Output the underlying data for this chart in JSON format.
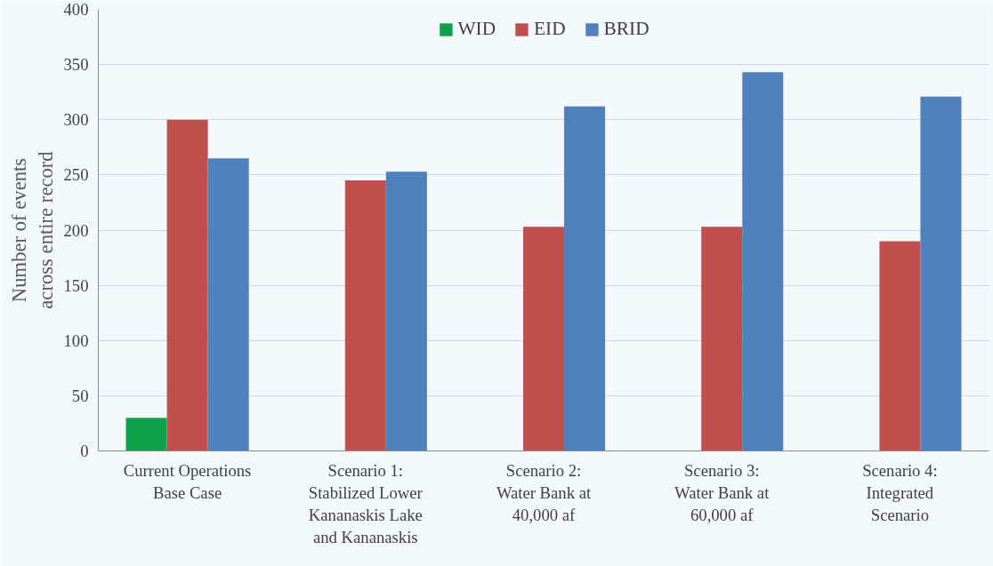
{
  "chart_data": {
    "type": "bar",
    "ylabel": "Number of events\nacross entire record",
    "categories": [
      "Current Operations\nBase Case",
      "Scenario 1:\nStabilized Lower\nKananaskis Lake\nand Kananaskis",
      "Scenario 2:\nWater Bank at\n40,000 af",
      "Scenario 3:\nWater Bank at\n60,000 af",
      "Scenario 4:\nIntegrated\nScenario"
    ],
    "series": [
      {
        "name": "WID",
        "color": "#0ea04a",
        "values": [
          30,
          0,
          0,
          0,
          0
        ]
      },
      {
        "name": "EID",
        "color": "#c0504d",
        "values": [
          300,
          245,
          203,
          203,
          190
        ]
      },
      {
        "name": "BRID",
        "color": "#4f81bd",
        "values": [
          265,
          253,
          312,
          343,
          321
        ]
      }
    ],
    "ylim": [
      0,
      400
    ],
    "yticks": [
      0,
      50,
      100,
      150,
      200,
      250,
      300,
      350,
      400
    ],
    "grid": "y",
    "legend": "top"
  }
}
